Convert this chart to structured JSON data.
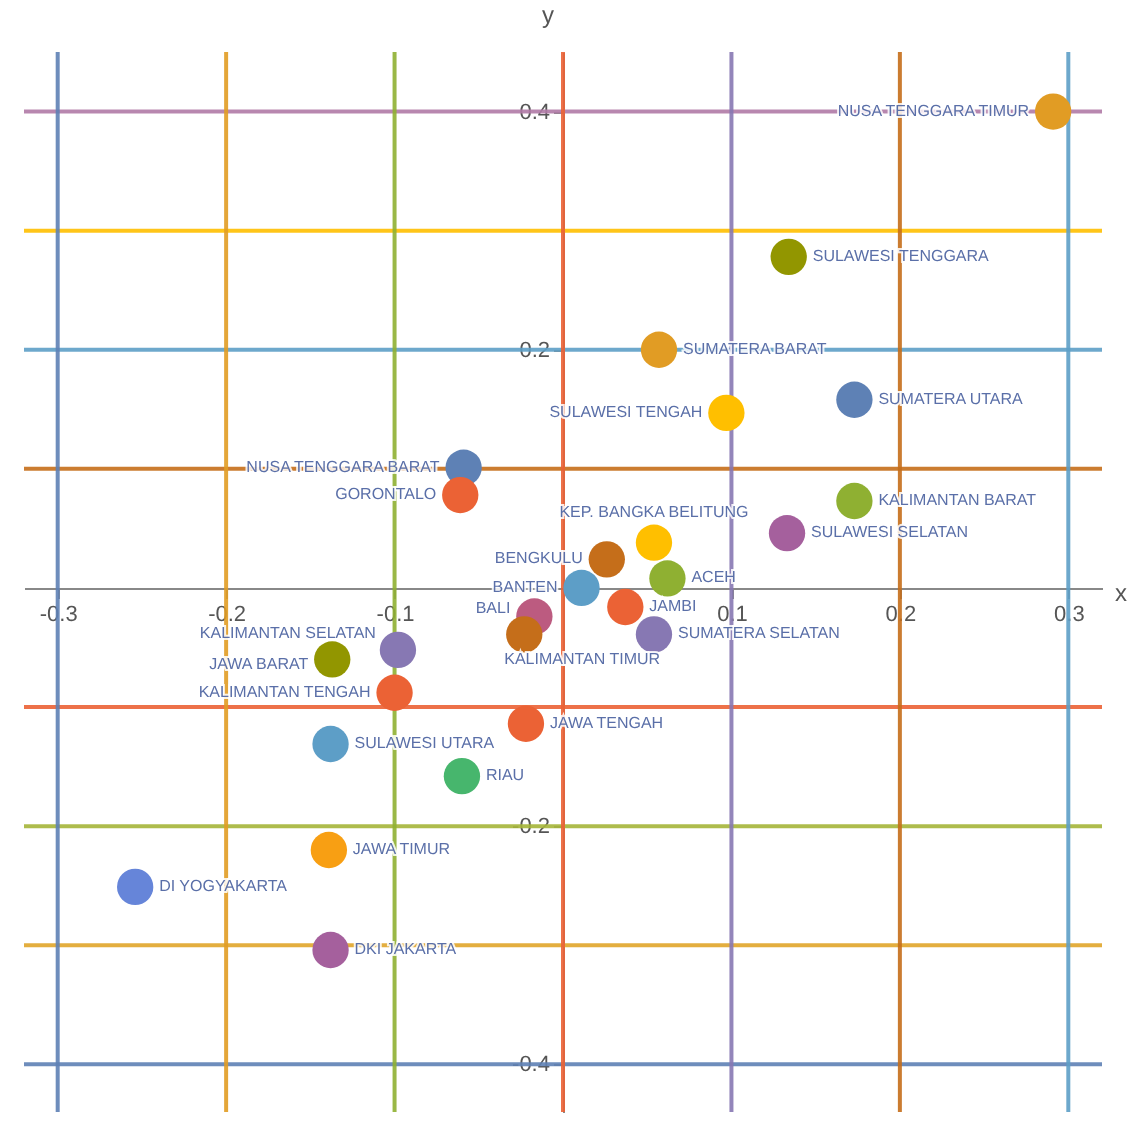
{
  "chart_data": {
    "type": "scatter",
    "xlabel": "x",
    "ylabel": "y",
    "xlim": [
      -0.32,
      0.32
    ],
    "ylim": [
      -0.44,
      0.45
    ],
    "xticks": [
      -0.3,
      -0.2,
      -0.1,
      0.1,
      0.2,
      0.3
    ],
    "yticks": [
      -0.4,
      -0.2,
      0.2,
      0.4
    ],
    "marker": "circle",
    "series": [
      {
        "name": "NUSA TENGGARA TIMUR",
        "color": "#e19c24",
        "x": [
          0.291
        ],
        "values": [
          0.4
        ]
      },
      {
        "name": "SULAWESI TENGGARA",
        "color": "#929600",
        "x": [
          0.134
        ],
        "values": [
          0.278
        ]
      },
      {
        "name": "SUMATERA BARAT",
        "color": "#e19c24",
        "x": [
          0.057
        ],
        "values": [
          0.2
        ]
      },
      {
        "name": "SULAWESI TENGAH",
        "color": "#ffbf00",
        "x": [
          0.097
        ],
        "values": [
          0.147
        ]
      },
      {
        "name": "SUMATERA UTARA",
        "color": "#5e81b5",
        "x": [
          0.173
        ],
        "values": [
          0.158
        ]
      },
      {
        "name": "KALIMANTAN BARAT",
        "color": "#8fb032",
        "x": [
          0.173
        ],
        "values": [
          0.073
        ]
      },
      {
        "name": "SULAWESI SELATAN",
        "color": "#a5609d",
        "x": [
          0.133
        ],
        "values": [
          0.046
        ]
      },
      {
        "name": "NUSA TENGGARA BARAT",
        "color": "#5e81b5",
        "x": [
          -0.059
        ],
        "values": [
          0.101
        ]
      },
      {
        "name": "GORONTALO",
        "color": "#eb6235",
        "x": [
          -0.061
        ],
        "values": [
          0.078
        ]
      },
      {
        "name": "KEP. BANGKA BELITUNG",
        "color": "#ffbf00",
        "x": [
          0.054
        ],
        "values": [
          0.038
        ]
      },
      {
        "name": "BENGKULU",
        "color": "#c56e1a",
        "x": [
          0.026
        ],
        "values": [
          0.024
        ]
      },
      {
        "name": "ACEH",
        "color": "#8fb032",
        "x": [
          0.062
        ],
        "values": [
          0.008
        ]
      },
      {
        "name": "BANTEN",
        "color": "#5d9ec7",
        "x": [
          0.011
        ],
        "values": [
          0.0
        ]
      },
      {
        "name": "JAMBI",
        "color": "#eb6235",
        "x": [
          0.037
        ],
        "values": [
          -0.016
        ]
      },
      {
        "name": "SUMATERA SELATAN",
        "color": "#8778b3",
        "x": [
          0.054
        ],
        "values": [
          -0.039
        ]
      },
      {
        "name": "BALI",
        "color": "#bc5b80",
        "x": [
          -0.017
        ],
        "values": [
          -0.024
        ]
      },
      {
        "name": "KALIMANTAN TIMUR",
        "color": "#c56e1a",
        "x": [
          -0.023
        ],
        "values": [
          -0.039
        ]
      },
      {
        "name": "JAWA BARAT",
        "color": "#929600",
        "x": [
          -0.137
        ],
        "values": [
          -0.06
        ]
      },
      {
        "name": "KALIMANTAN SELATAN",
        "color": "#8778b3",
        "x": [
          -0.098
        ],
        "values": [
          -0.052
        ]
      },
      {
        "name": "KALIMANTAN TENGAH",
        "color": "#eb6235",
        "x": [
          -0.1
        ],
        "values": [
          -0.088
        ]
      },
      {
        "name": "SULAWESI UTARA",
        "color": "#5d9ec7",
        "x": [
          -0.138
        ],
        "values": [
          -0.131
        ]
      },
      {
        "name": "JAWA TENGAH",
        "color": "#eb6235",
        "x": [
          -0.022
        ],
        "values": [
          -0.114
        ]
      },
      {
        "name": "RIAU",
        "color": "#47b66d",
        "x": [
          -0.06
        ],
        "values": [
          -0.158
        ]
      },
      {
        "name": "JAWA TIMUR",
        "color": "#f89f13",
        "x": [
          -0.139
        ],
        "values": [
          -0.22
        ]
      },
      {
        "name": "DI YOGYAKARTA",
        "color": "#6685d9",
        "x": [
          -0.254
        ],
        "values": [
          -0.251
        ]
      },
      {
        "name": "DKI JAKARTA",
        "color": "#a5609d",
        "x": [
          -0.138
        ],
        "values": [
          -0.304
        ]
      }
    ],
    "ref_lines": [
      {
        "axis": "y",
        "value": 0.4,
        "color": "#b07aa6"
      },
      {
        "axis": "y",
        "value": 0.3,
        "color": "#ffbf00"
      },
      {
        "axis": "y",
        "value": 0.2,
        "color": "#5d9ec7"
      },
      {
        "axis": "y",
        "value": 0.1,
        "color": "#c56e1a"
      },
      {
        "axis": "y",
        "value": -0.1,
        "color": "#eb6235"
      },
      {
        "axis": "y",
        "value": -0.2,
        "color": "#a5b538"
      },
      {
        "axis": "y",
        "value": -0.3,
        "color": "#e0a52a"
      },
      {
        "axis": "y",
        "value": -0.4,
        "color": "#5e81b5"
      },
      {
        "axis": "x",
        "value": -0.3,
        "color": "#5e81b5"
      },
      {
        "axis": "x",
        "value": -0.2,
        "color": "#e19c24"
      },
      {
        "axis": "x",
        "value": -0.1,
        "color": "#8fb032"
      },
      {
        "axis": "x",
        "value": 0,
        "color": "#eb6235"
      },
      {
        "axis": "x",
        "value": 0.1,
        "color": "#8778b3"
      },
      {
        "axis": "x",
        "value": 0.2,
        "color": "#c56e1a"
      },
      {
        "axis": "x",
        "value": 0.3,
        "color": "#5d9ec7"
      }
    ]
  }
}
